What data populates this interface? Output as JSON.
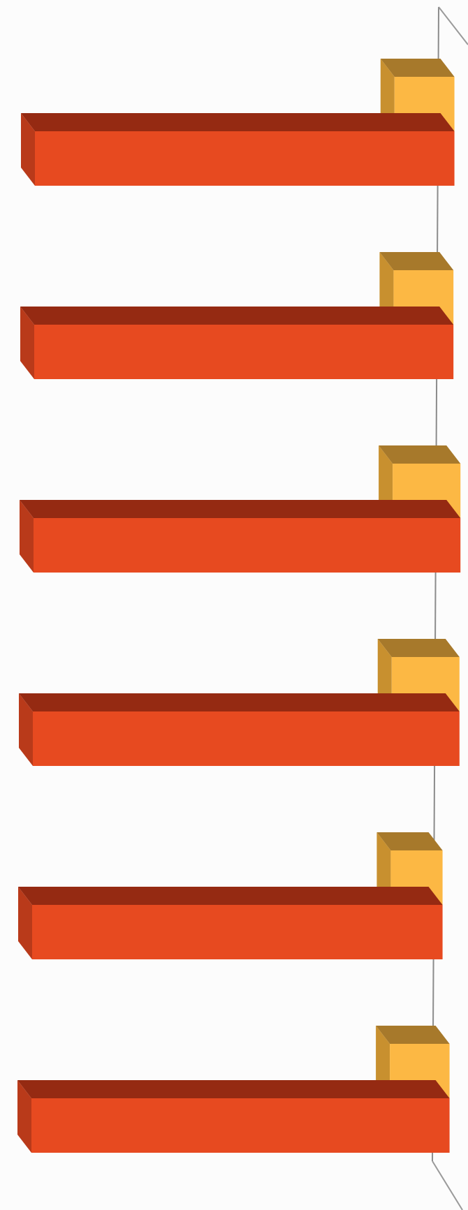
{
  "chart_data": {
    "type": "bar",
    "orientation": "horizontal",
    "style": "3d",
    "categories": [
      "",
      "",
      "",
      "",
      "",
      ""
    ],
    "series": [
      {
        "values": [
          9,
          9,
          9,
          9,
          9,
          9
        ],
        "color": "#e74a20",
        "top_color": "#952a12",
        "side_color": "#b93a1a"
      },
      {
        "values": [
          1.5,
          1.5,
          1.7,
          1.7,
          1.3,
          1.5
        ],
        "color": "#fcb844",
        "top_color": "#a7792b",
        "side_color": "#c8902f"
      }
    ],
    "title": "",
    "xlabel": "",
    "ylabel": "",
    "grid": false,
    "legend": "none"
  }
}
